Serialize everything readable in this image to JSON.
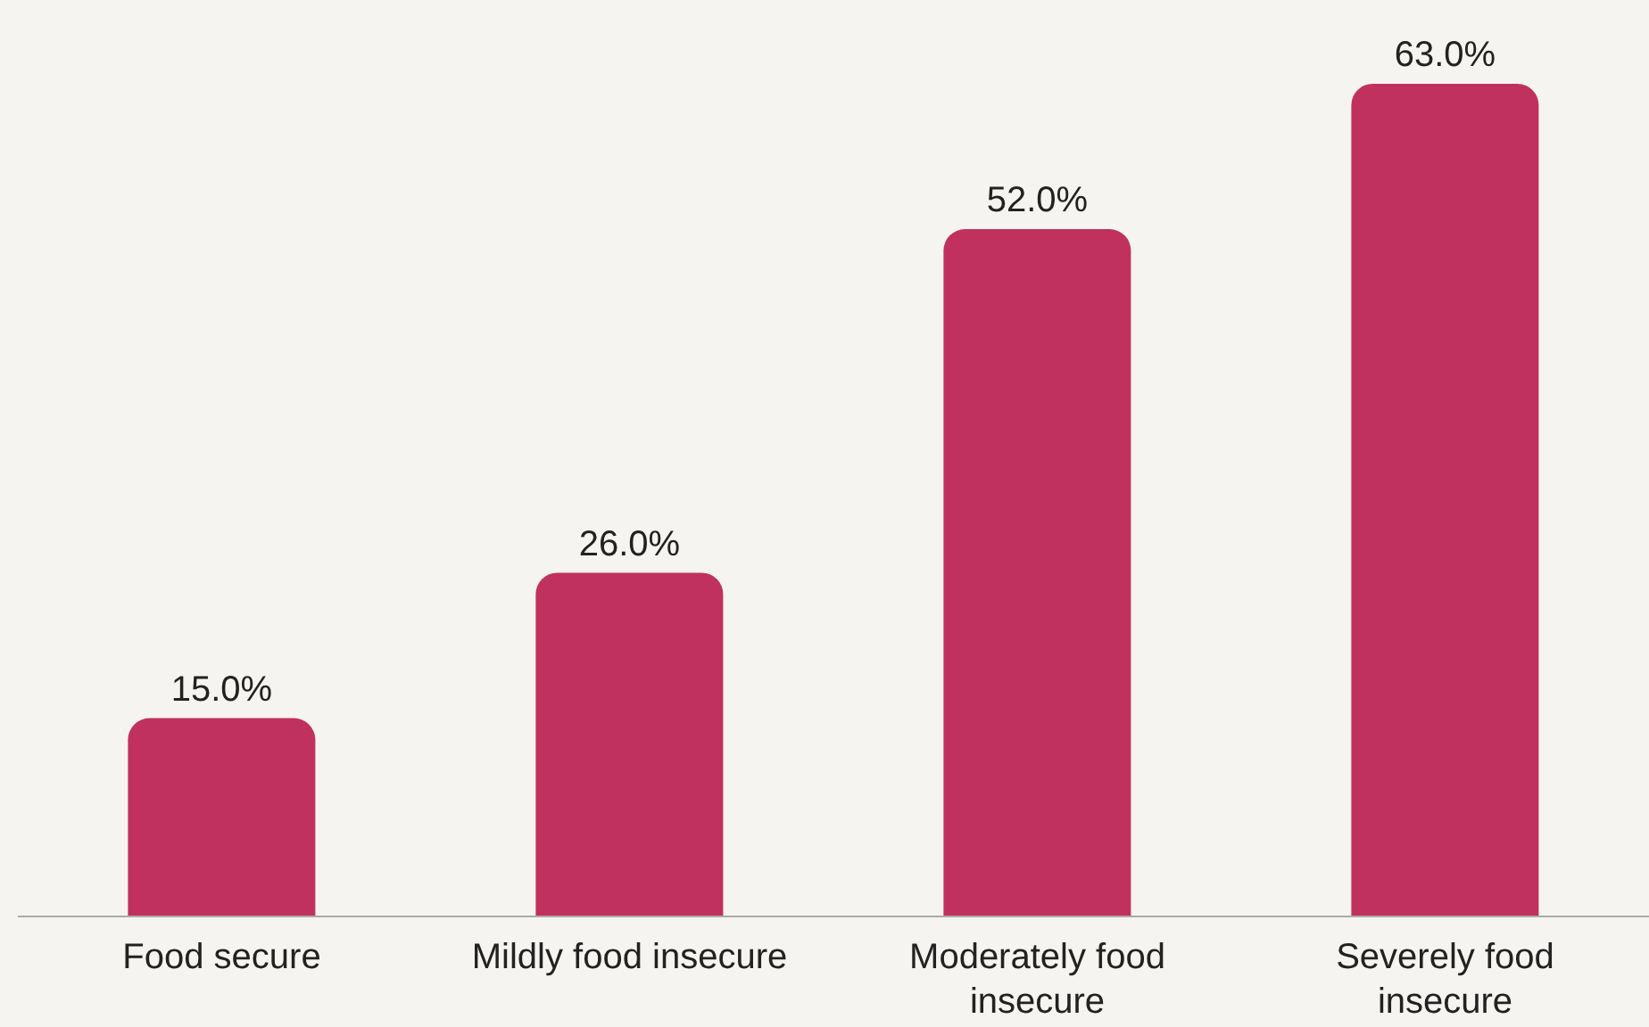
{
  "chart_data": {
    "type": "bar",
    "categories": [
      "Food secure",
      "Mildly food insecure",
      "Moderately food insecure",
      "Severely food insecure"
    ],
    "values": [
      15,
      26,
      52,
      63
    ],
    "color": "#c0315f",
    "value_labels": [
      "15.0%",
      "26.0%",
      "52.0%",
      "63.0%"
    ]
  }
}
